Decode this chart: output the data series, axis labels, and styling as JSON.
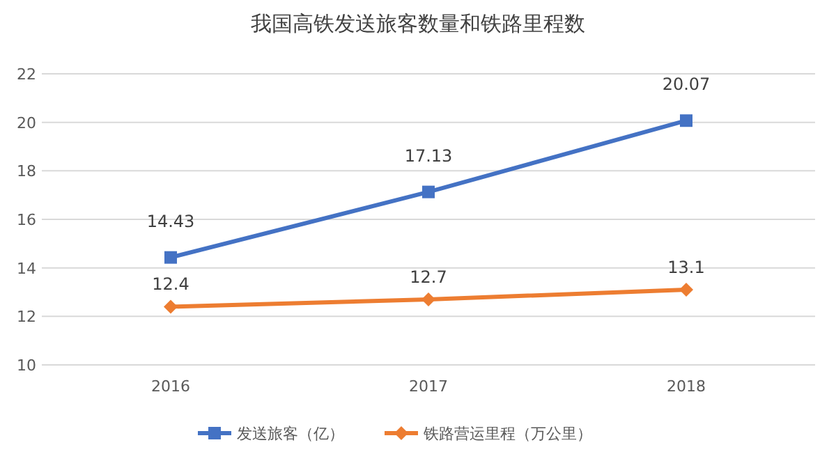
{
  "chart_data": {
    "type": "line",
    "title": "我国高铁发送旅客数量和铁路里程数",
    "categories": [
      "2016",
      "2017",
      "2018"
    ],
    "series": [
      {
        "name": "发送旅客（亿）",
        "color": "#4472c4",
        "marker": "square",
        "values": [
          14.43,
          17.13,
          20.07
        ]
      },
      {
        "name": "铁路营运里程（万公里）",
        "color": "#ed7d31",
        "marker": "diamond",
        "values": [
          12.4,
          12.7,
          13.1
        ]
      }
    ],
    "ylim": [
      10,
      22
    ],
    "yticks": [
      10,
      12,
      14,
      16,
      18,
      20,
      22
    ],
    "grid": "y",
    "legend": "bottom",
    "data_labels": true,
    "line_style": "solid"
  }
}
